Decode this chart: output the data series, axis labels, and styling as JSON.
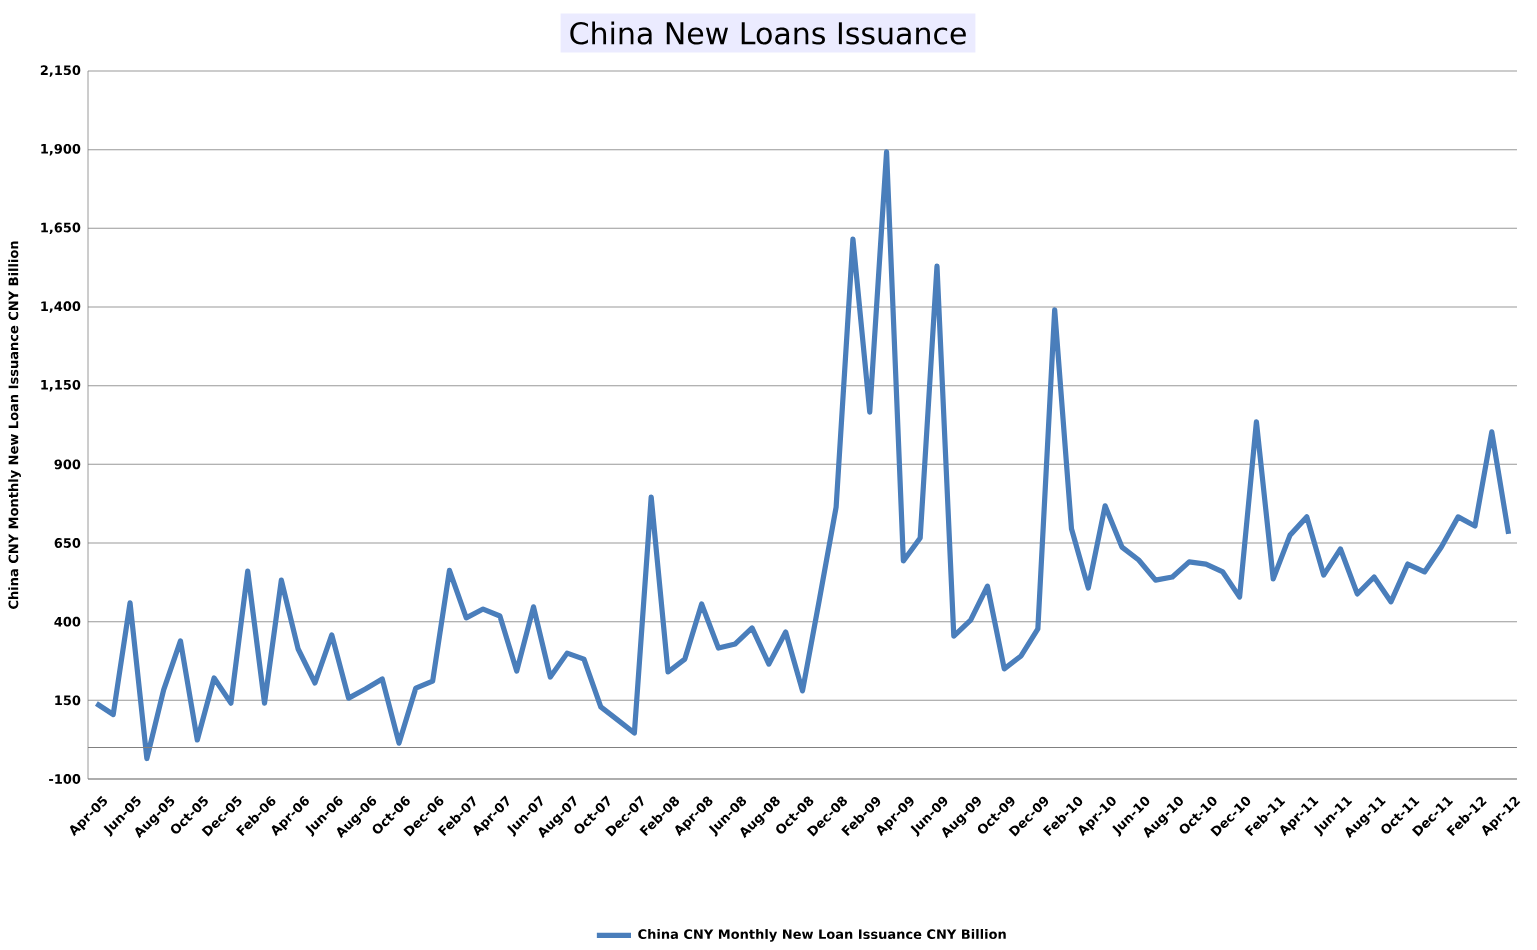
{
  "chart_data": {
    "type": "line",
    "title": "China New Loans Issuance",
    "ylabel": "China CNY Monthly New Loan Issuance CNY Billion",
    "categories": [
      "Apr-05",
      null,
      "Jun-05",
      null,
      "Aug-05",
      null,
      "Oct-05",
      null,
      "Dec-05",
      null,
      "Feb-06",
      null,
      "Apr-06",
      null,
      "Jun-06",
      null,
      "Aug-06",
      null,
      "Oct-06",
      null,
      "Dec-06",
      null,
      "Feb-07",
      null,
      "Apr-07",
      null,
      "Jun-07",
      null,
      "Aug-07",
      null,
      "Oct-07",
      null,
      "Dec-07",
      null,
      "Feb-08",
      null,
      "Apr-08",
      null,
      "Jun-08",
      null,
      "Aug-08",
      null,
      "Oct-08",
      null,
      "Dec-08",
      null,
      "Feb-09",
      null,
      "Apr-09",
      null,
      "Jun-09",
      null,
      "Aug-09",
      null,
      "Oct-09",
      null,
      "Dec-09",
      null,
      "Feb-10",
      null,
      "Apr-10",
      null,
      "Jun-10",
      null,
      "Aug-10",
      null,
      "Oct-10",
      null,
      "Dec-10",
      null,
      "Feb-11",
      null,
      "Apr-11",
      null,
      "Jun-11",
      null,
      "Aug-11",
      null,
      "Oct-11",
      null,
      "Dec-11",
      null,
      "Feb-12",
      null,
      "Apr-12"
    ],
    "series": [
      {
        "name": "China CNY Monthly New Loan Issuance CNY Billion",
        "color": "#4a7ebb",
        "values": [
          140,
          105,
          460,
          -35,
          183,
          339,
          24,
          221,
          141,
          561,
          141,
          532,
          313,
          205,
          358,
          157,
          186,
          218,
          14,
          189,
          211,
          563,
          412,
          440,
          418,
          243,
          447,
          224,
          300,
          281,
          129,
          88,
          46,
          796,
          240,
          281,
          456,
          316,
          329,
          380,
          265,
          367,
          180,
          469,
          764,
          1616,
          1066,
          1893,
          593,
          666,
          1530,
          354,
          405,
          513,
          250,
          291,
          377,
          1391,
          695,
          507,
          768,
          637,
          596,
          532,
          542,
          590,
          583,
          558,
          478,
          1035,
          536,
          675,
          733,
          548,
          631,
          488,
          542,
          463,
          583,
          558,
          637,
          733,
          704,
          1003,
          679
        ]
      }
    ],
    "ylim": [
      -100,
      2150
    ],
    "yticks": [
      {
        "value": -100,
        "label": "-100"
      },
      {
        "value": 150,
        "label": "150"
      },
      {
        "value": 400,
        "label": "400"
      },
      {
        "value": 650,
        "label": "650"
      },
      {
        "value": 900,
        "label": "900"
      },
      {
        "value": 1150,
        "label": "1,150"
      },
      {
        "value": 1400,
        "label": "1,400"
      },
      {
        "value": 1650,
        "label": "1,650"
      },
      {
        "value": 1900,
        "label": "1,900"
      },
      {
        "value": 2150,
        "label": "2,150"
      }
    ],
    "grid": "y",
    "legend": "bottom",
    "marker": "none",
    "line_style": "solid"
  }
}
